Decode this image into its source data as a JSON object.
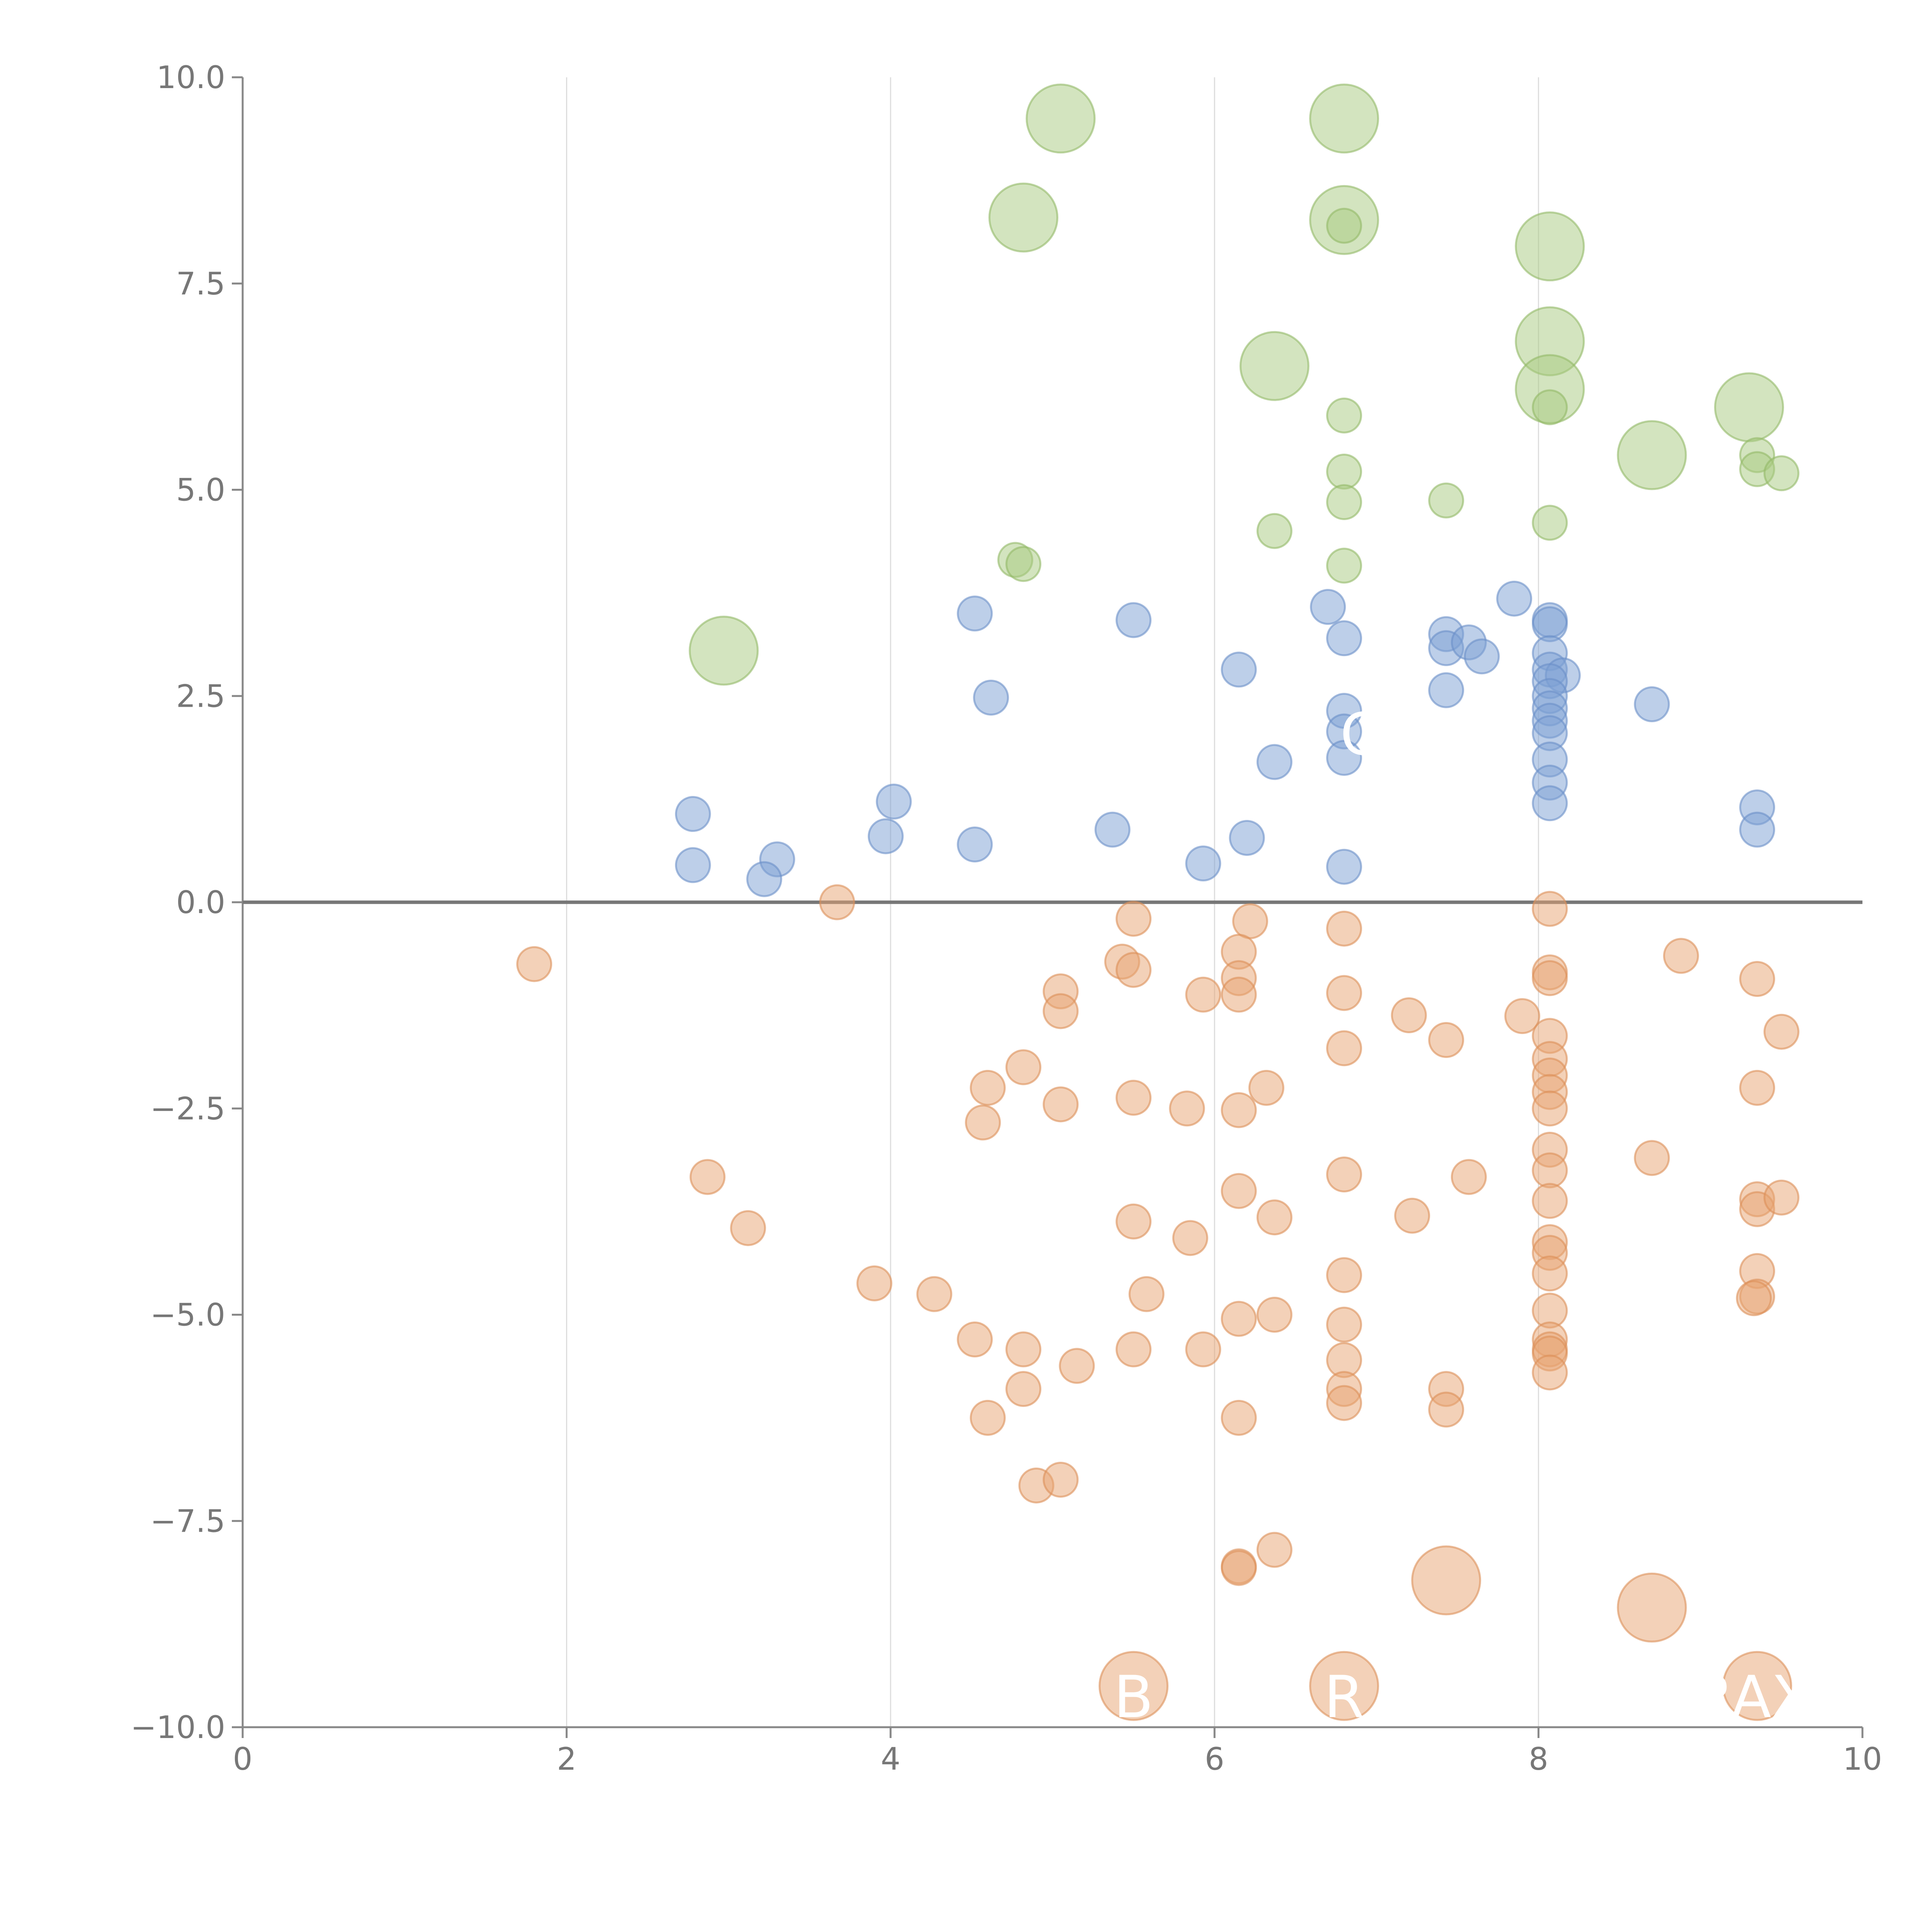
{
  "chart_data": {
    "type": "scatter",
    "title": "",
    "xlabel": "",
    "ylabel": "",
    "xlim": [
      0,
      10
    ],
    "ylim": [
      -10,
      10
    ],
    "x_ticks": [
      0,
      2,
      4,
      6,
      8,
      10
    ],
    "x_tick_labels": [
      "0",
      "2",
      "4",
      "6",
      "8",
      "10"
    ],
    "y_ticks": [
      -10,
      -7.5,
      -5,
      -2.5,
      0,
      2.5,
      5,
      7.5,
      10
    ],
    "y_tick_labels": [
      "−10.0",
      "−7.5",
      "−5.0",
      "−2.5",
      "0.0",
      "2.5",
      "5.0",
      "7.5",
      "10.0"
    ],
    "vertical_gridlines": [
      2,
      4,
      6,
      8
    ],
    "zero_line": 0,
    "series": [
      {
        "name": "green",
        "color": "#a8c97f",
        "stroke": "#93b968",
        "points": [
          [
            5.05,
            9.5,
            2
          ],
          [
            6.8,
            9.5,
            2
          ],
          [
            4.82,
            8.3,
            2
          ],
          [
            6.8,
            8.27,
            2
          ],
          [
            6.8,
            8.2,
            1
          ],
          [
            8.07,
            7.95,
            2
          ],
          [
            8.07,
            6.8,
            2
          ],
          [
            6.37,
            6.5,
            2
          ],
          [
            8.07,
            6.22,
            2
          ],
          [
            8.07,
            6.0,
            1
          ],
          [
            9.3,
            6.0,
            2
          ],
          [
            6.8,
            5.9,
            1
          ],
          [
            8.7,
            5.42,
            2
          ],
          [
            9.35,
            5.42,
            1
          ],
          [
            9.35,
            5.25,
            1
          ],
          [
            9.5,
            5.2,
            1
          ],
          [
            6.8,
            5.22,
            1
          ],
          [
            7.43,
            4.87,
            1
          ],
          [
            6.8,
            4.85,
            1
          ],
          [
            8.07,
            4.6,
            1
          ],
          [
            6.37,
            4.5,
            1
          ],
          [
            4.77,
            4.15,
            1
          ],
          [
            4.82,
            4.1,
            1
          ],
          [
            6.8,
            4.08,
            1
          ],
          [
            2.97,
            3.05,
            2
          ]
        ]
      },
      {
        "name": "blue",
        "color": "#7b9fd4",
        "stroke": "#6a8fc8",
        "points": [
          [
            4.52,
            3.5,
            1
          ],
          [
            5.5,
            3.42,
            1
          ],
          [
            6.7,
            3.58,
            1
          ],
          [
            6.8,
            3.2,
            1
          ],
          [
            7.43,
            3.25,
            1
          ],
          [
            7.43,
            3.08,
            1
          ],
          [
            7.57,
            3.15,
            1
          ],
          [
            7.65,
            2.98,
            1
          ],
          [
            7.85,
            3.68,
            1
          ],
          [
            8.07,
            3.42,
            1
          ],
          [
            8.07,
            3.37,
            1
          ],
          [
            8.07,
            3.02,
            1
          ],
          [
            8.07,
            2.82,
            1
          ],
          [
            8.15,
            2.75,
            1
          ],
          [
            8.07,
            2.68,
            1
          ],
          [
            8.07,
            2.5,
            1
          ],
          [
            8.07,
            2.35,
            1
          ],
          [
            8.07,
            2.2,
            1
          ],
          [
            8.07,
            2.05,
            1
          ],
          [
            8.07,
            1.73,
            1
          ],
          [
            8.07,
            1.45,
            1
          ],
          [
            8.07,
            1.2,
            1
          ],
          [
            6.15,
            2.82,
            1
          ],
          [
            4.62,
            2.48,
            1
          ],
          [
            6.8,
            2.32,
            1
          ],
          [
            6.8,
            2.07,
            1
          ],
          [
            6.8,
            1.75,
            1
          ],
          [
            7.43,
            2.57,
            1
          ],
          [
            8.7,
            2.4,
            1
          ],
          [
            6.37,
            1.7,
            1
          ],
          [
            2.78,
            1.07,
            1
          ],
          [
            4.02,
            1.22,
            1
          ],
          [
            3.97,
            0.8,
            1
          ],
          [
            4.52,
            0.7,
            1
          ],
          [
            5.37,
            0.88,
            1
          ],
          [
            6.2,
            0.78,
            1
          ],
          [
            5.93,
            0.47,
            1
          ],
          [
            6.8,
            0.43,
            1
          ],
          [
            2.78,
            0.45,
            1
          ],
          [
            3.3,
            0.52,
            1
          ],
          [
            3.22,
            0.28,
            1
          ],
          [
            9.35,
            1.15,
            1
          ],
          [
            9.35,
            0.88,
            1
          ]
        ]
      },
      {
        "name": "orange",
        "color": "#e8a472",
        "stroke": "#dc9059",
        "points": [
          [
            3.67,
            0.0,
            1
          ],
          [
            1.8,
            -0.75,
            1
          ],
          [
            5.5,
            -0.2,
            1
          ],
          [
            6.22,
            -0.23,
            1
          ],
          [
            6.8,
            -0.32,
            1
          ],
          [
            8.07,
            -0.08,
            1
          ],
          [
            5.43,
            -0.72,
            1
          ],
          [
            5.5,
            -0.82,
            1
          ],
          [
            6.15,
            -0.6,
            1
          ],
          [
            6.15,
            -0.92,
            1
          ],
          [
            6.15,
            -1.12,
            1
          ],
          [
            5.93,
            -1.12,
            1
          ],
          [
            5.05,
            -1.08,
            1
          ],
          [
            5.05,
            -1.32,
            1
          ],
          [
            6.8,
            -1.1,
            1
          ],
          [
            7.2,
            -1.37,
            1
          ],
          [
            7.43,
            -1.67,
            1
          ],
          [
            7.9,
            -1.38,
            1
          ],
          [
            8.07,
            -0.85,
            1
          ],
          [
            8.07,
            -0.92,
            1
          ],
          [
            8.07,
            -1.62,
            1
          ],
          [
            8.07,
            -1.9,
            1
          ],
          [
            8.07,
            -2.1,
            1
          ],
          [
            8.07,
            -2.3,
            1
          ],
          [
            8.07,
            -2.5,
            1
          ],
          [
            8.88,
            -0.65,
            1
          ],
          [
            9.35,
            -0.93,
            1
          ],
          [
            9.5,
            -1.57,
            1
          ],
          [
            6.8,
            -1.77,
            1
          ],
          [
            4.82,
            -2.0,
            1
          ],
          [
            4.6,
            -2.25,
            1
          ],
          [
            4.57,
            -2.67,
            1
          ],
          [
            5.05,
            -2.45,
            1
          ],
          [
            5.5,
            -2.37,
            1
          ],
          [
            5.83,
            -2.5,
            1
          ],
          [
            6.15,
            -2.52,
            1
          ],
          [
            6.32,
            -2.25,
            1
          ],
          [
            8.07,
            -3.0,
            1
          ],
          [
            8.07,
            -3.25,
            1
          ],
          [
            8.07,
            -3.62,
            1
          ],
          [
            6.8,
            -3.3,
            1
          ],
          [
            7.57,
            -3.33,
            1
          ],
          [
            8.7,
            -3.1,
            1
          ],
          [
            9.35,
            -2.25,
            1
          ],
          [
            2.87,
            -3.33,
            1
          ],
          [
            3.12,
            -3.95,
            1
          ],
          [
            5.5,
            -3.87,
            1
          ],
          [
            5.85,
            -4.07,
            1
          ],
          [
            6.15,
            -3.5,
            1
          ],
          [
            6.37,
            -3.82,
            1
          ],
          [
            7.22,
            -3.8,
            1
          ],
          [
            8.07,
            -4.12,
            1
          ],
          [
            8.07,
            -4.25,
            1
          ],
          [
            8.07,
            -4.5,
            1
          ],
          [
            9.35,
            -3.6,
            1
          ],
          [
            9.35,
            -3.72,
            1
          ],
          [
            9.5,
            -3.58,
            1
          ],
          [
            6.8,
            -4.52,
            1
          ],
          [
            3.9,
            -4.62,
            1
          ],
          [
            4.27,
            -4.75,
            1
          ],
          [
            5.58,
            -4.75,
            1
          ],
          [
            6.15,
            -5.05,
            1
          ],
          [
            6.37,
            -5.0,
            1
          ],
          [
            6.8,
            -5.12,
            1
          ],
          [
            8.07,
            -4.95,
            1
          ],
          [
            9.35,
            -4.47,
            1
          ],
          [
            9.35,
            -4.78,
            1
          ],
          [
            9.33,
            -4.8,
            1
          ],
          [
            4.52,
            -5.3,
            1
          ],
          [
            4.82,
            -5.42,
            1
          ],
          [
            5.5,
            -5.42,
            1
          ],
          [
            5.93,
            -5.42,
            1
          ],
          [
            6.8,
            -5.55,
            1
          ],
          [
            8.07,
            -5.3,
            1
          ],
          [
            8.07,
            -5.42,
            1
          ],
          [
            8.07,
            -5.47,
            1
          ],
          [
            8.07,
            -5.7,
            1
          ],
          [
            5.15,
            -5.62,
            1
          ],
          [
            4.82,
            -5.9,
            1
          ],
          [
            6.8,
            -5.9,
            1
          ],
          [
            6.8,
            -6.07,
            1
          ],
          [
            7.43,
            -5.9,
            1
          ],
          [
            7.43,
            -6.15,
            1
          ],
          [
            4.6,
            -6.25,
            1
          ],
          [
            6.15,
            -6.25,
            1
          ],
          [
            4.9,
            -7.07,
            1
          ],
          [
            5.05,
            -7.0,
            1
          ],
          [
            6.15,
            -8.05,
            1
          ],
          [
            6.15,
            -8.07,
            1
          ],
          [
            6.37,
            -7.85,
            1
          ],
          [
            7.43,
            -8.22,
            2
          ],
          [
            8.7,
            -8.55,
            2
          ],
          [
            5.5,
            -9.5,
            2
          ],
          [
            6.8,
            -9.5,
            2
          ],
          [
            9.35,
            -9.5,
            2
          ]
        ]
      }
    ],
    "annotations": [
      {
        "text": "B",
        "x": 5.5,
        "y": -9.62
      },
      {
        "text": "R",
        "x": 6.8,
        "y": -9.62
      },
      {
        "text": "RAX",
        "x": 9.32,
        "y": -9.62
      },
      {
        "text": "C",
        "x": 6.9,
        "y": 2.05
      }
    ]
  }
}
